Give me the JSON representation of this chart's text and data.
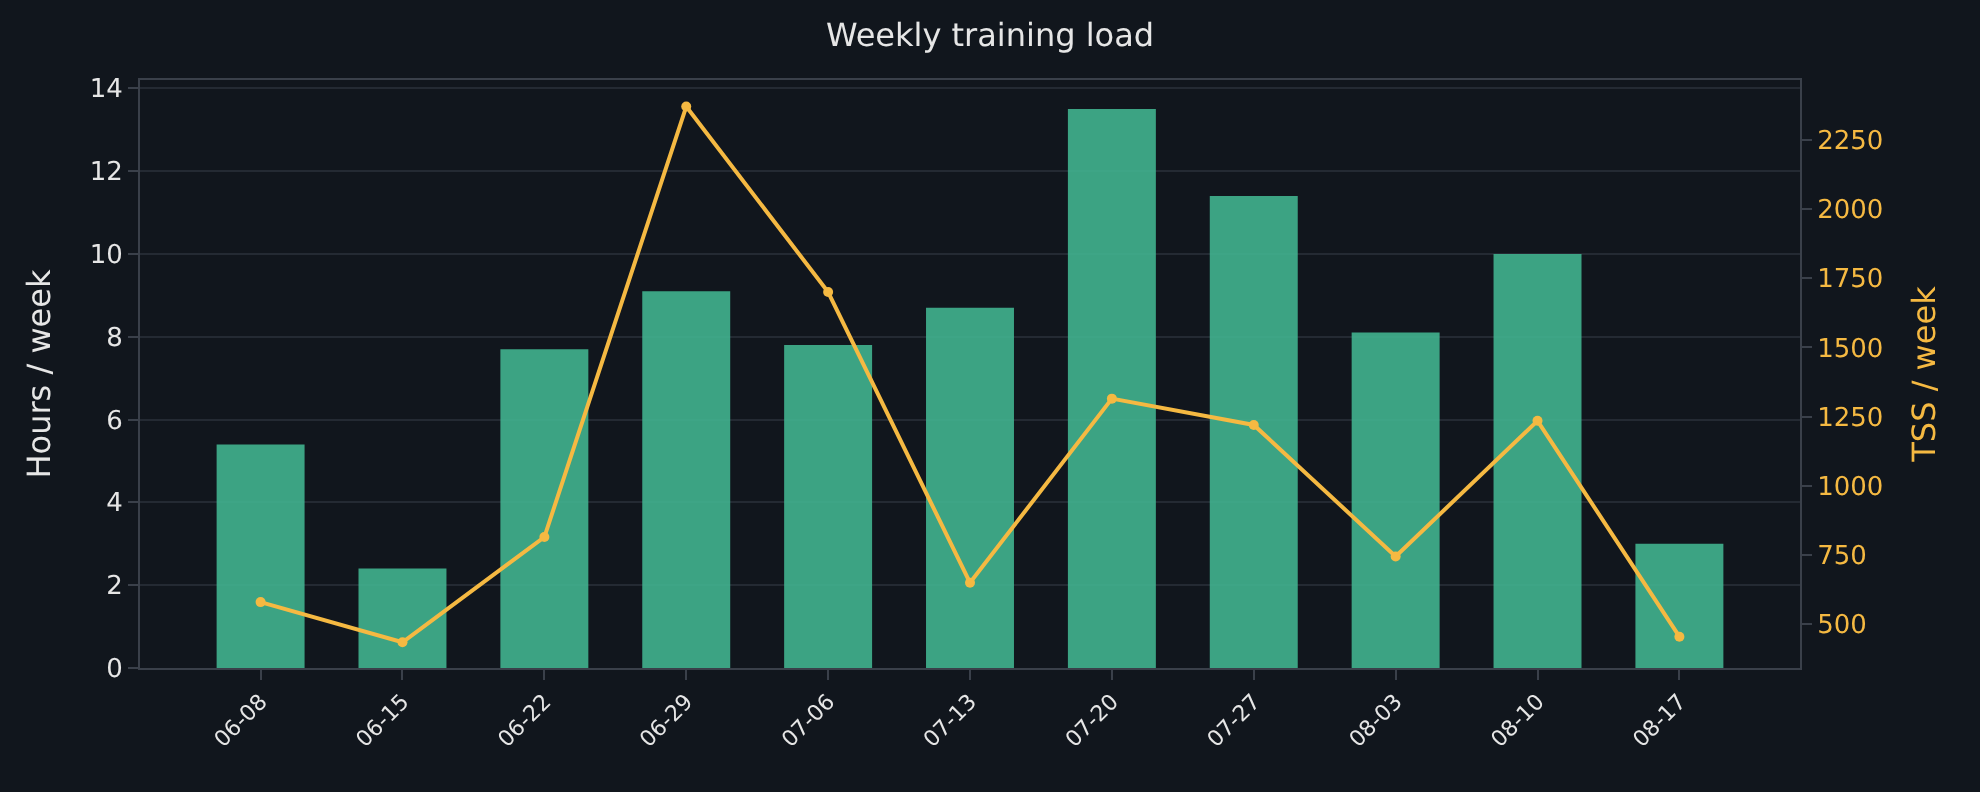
{
  "chart_data": {
    "type": "bar",
    "title": "Weekly training load",
    "ylabel": "Hours / week",
    "y2label": "TSS / week",
    "categories": [
      "06-08",
      "06-15",
      "06-22",
      "06-29",
      "07-06",
      "07-13",
      "07-20",
      "07-27",
      "08-03",
      "08-10",
      "08-17"
    ],
    "series": [
      {
        "color": "#41b38f",
        "values": [
          5.4,
          2.4,
          7.7,
          9.1,
          7.8,
          8.7,
          13.5,
          11.4,
          8.1,
          10.0,
          3.0
        ]
      },
      {
        "type": "line",
        "axis": "y2",
        "color": "#f5b942",
        "marker": "circle",
        "values": [
          580,
          435,
          815,
          2370,
          1700,
          650,
          1315,
          1220,
          745,
          1235,
          455
        ]
      }
    ],
    "ylim": [
      0,
      14.2
    ],
    "yticks": [
      0,
      2,
      4,
      6,
      8,
      10,
      12,
      14
    ],
    "y2lim": [
      342,
      2466
    ],
    "y2ticks": [
      500,
      750,
      1000,
      1250,
      1500,
      1750,
      2000,
      2250
    ],
    "grid": "y"
  }
}
